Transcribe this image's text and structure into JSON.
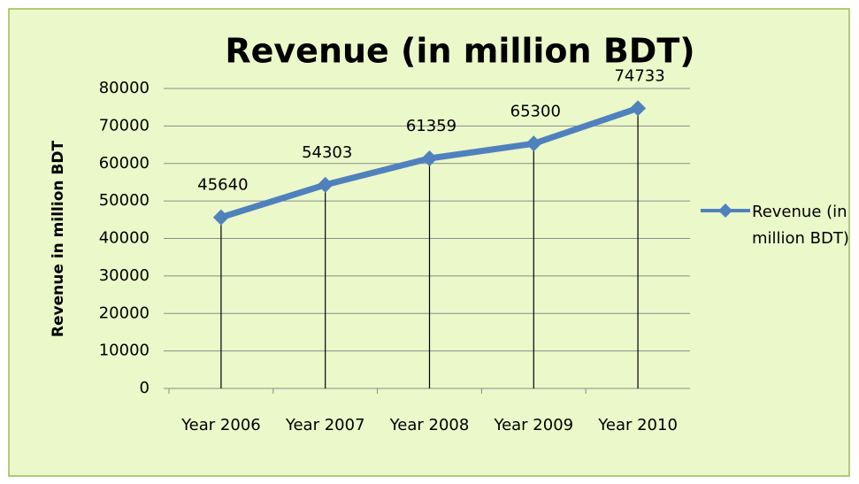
{
  "chart_data": {
    "type": "line",
    "title": "Revenue (in million BDT)",
    "y_label": "Revenue in million BDT",
    "categories": [
      "Year 2006",
      "Year 2007",
      "Year 2008",
      "Year 2009",
      "Year 2010"
    ],
    "series": [
      {
        "name": "Revenue (in million BDT)",
        "color": "#4f81bd",
        "values": [
          45640,
          54303,
          61359,
          65300,
          74733
        ]
      }
    ],
    "ylim": [
      0,
      80000
    ],
    "yticks": [
      0,
      10000,
      20000,
      30000,
      40000,
      50000,
      60000,
      70000,
      80000
    ],
    "grid": true,
    "drop_lines": true,
    "legend": "right"
  }
}
